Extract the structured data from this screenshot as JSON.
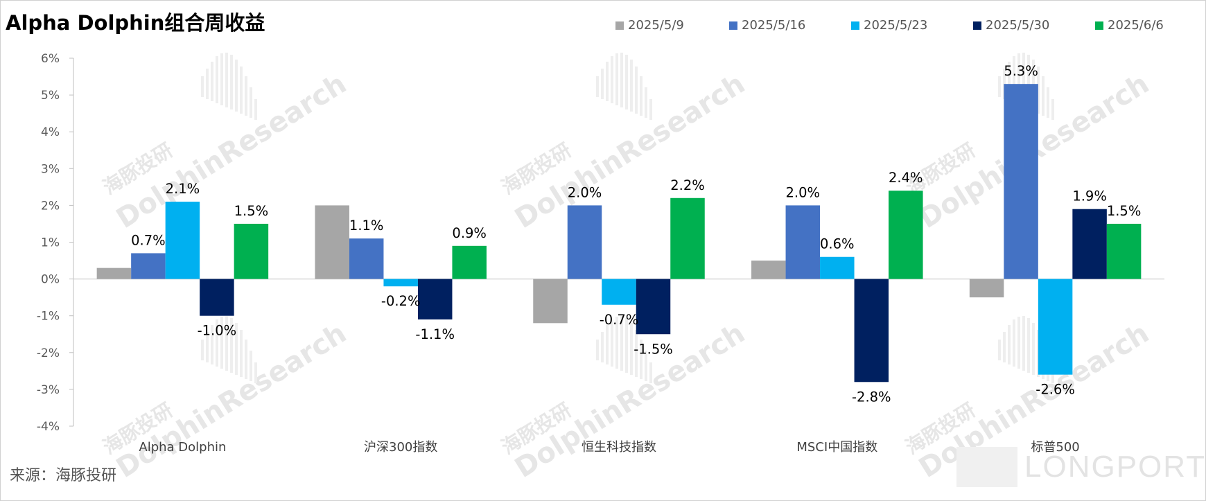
{
  "title": "Alpha Dolphin组合周收益",
  "source": "来源：海豚投研",
  "watermark": {
    "cn": "海豚投研",
    "en": "DolphinResearch",
    "logo": "LONGPORT"
  },
  "colors": {
    "2025/5/9": "#a6a6a6",
    "2025/5/16": "#4472c4",
    "2025/5/23": "#00b0f0",
    "2025/5/30": "#002060",
    "2025/6/6": "#00b050"
  },
  "chart_data": {
    "type": "bar",
    "title": "Alpha Dolphin组合周收益",
    "categories": [
      "Alpha Dolphin",
      "沪深300指数",
      "恒生科技指数",
      "MSCI中国指数",
      "标普500"
    ],
    "series": [
      {
        "name": "2025/5/9",
        "values": [
          0.3,
          2.0,
          -1.2,
          0.5,
          -0.5
        ],
        "labels": [
          "",
          "",
          "",
          "",
          ""
        ]
      },
      {
        "name": "2025/5/16",
        "values": [
          0.7,
          1.1,
          2.0,
          2.0,
          5.3
        ],
        "labels": [
          "0.7%",
          "1.1%",
          "2.0%",
          "2.0%",
          "5.3%"
        ]
      },
      {
        "name": "2025/5/23",
        "values": [
          2.1,
          -0.2,
          -0.7,
          0.6,
          -2.6
        ],
        "labels": [
          "2.1%",
          "-0.2%",
          "-0.7%",
          "0.6%",
          "-2.6%"
        ]
      },
      {
        "name": "2025/5/30",
        "values": [
          -1.0,
          -1.1,
          -1.5,
          -2.8,
          1.9
        ],
        "labels": [
          "-1.0%",
          "-1.1%",
          "-1.5%",
          "-2.8%",
          "1.9%"
        ]
      },
      {
        "name": "2025/6/6",
        "values": [
          1.5,
          0.9,
          2.2,
          2.4,
          1.5
        ],
        "labels": [
          "1.5%",
          "0.9%",
          "2.2%",
          "2.4%",
          "1.5%"
        ]
      }
    ],
    "ylim": [
      -4,
      6
    ],
    "yticks": [
      6,
      5,
      4,
      3,
      2,
      1,
      0,
      -1,
      -2,
      -3,
      -4
    ],
    "ytick_labels": [
      "6%",
      "5%",
      "4%",
      "3%",
      "2%",
      "1%",
      "0%",
      "-1%",
      "-2%",
      "-3%",
      "-4%"
    ],
    "xlabel": "",
    "ylabel": "",
    "legend_position": "top-right"
  }
}
